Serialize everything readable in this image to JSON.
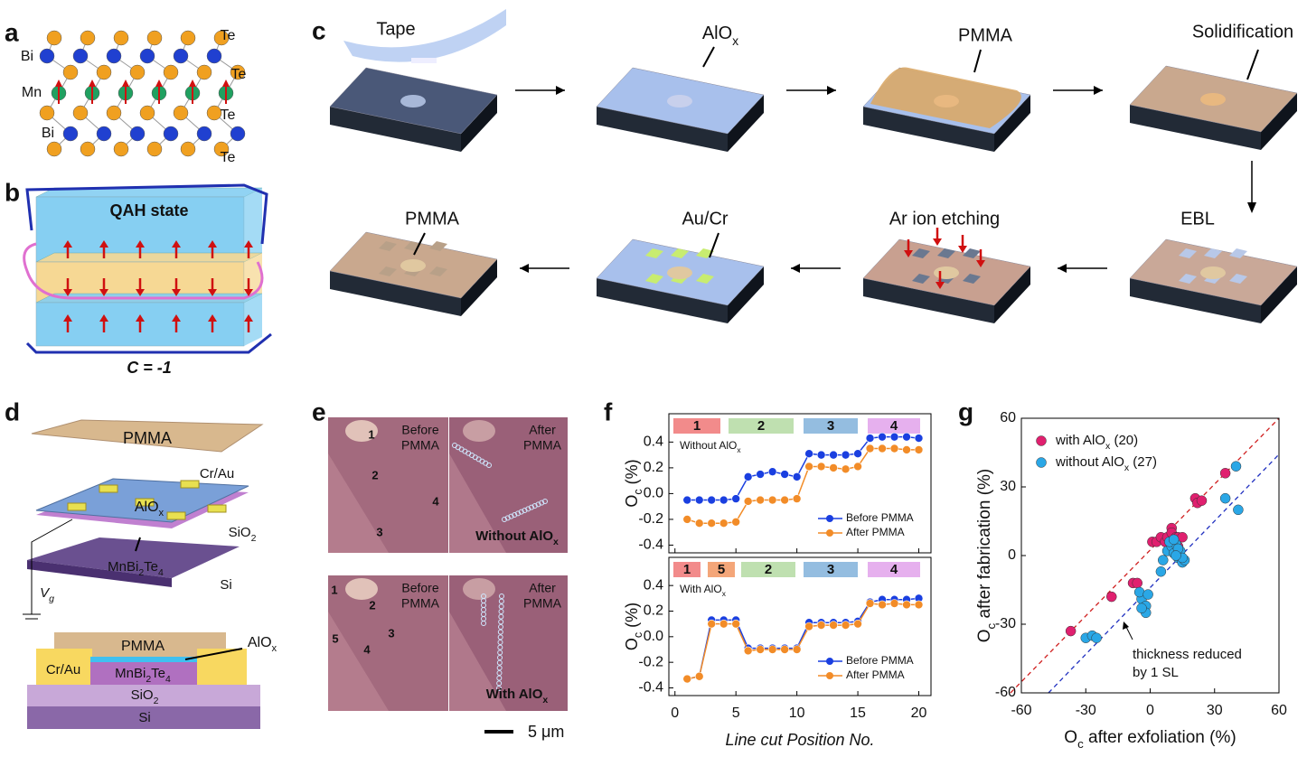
{
  "panel_letters": [
    "a",
    "b",
    "c",
    "d",
    "e",
    "f",
    "g"
  ],
  "panel_a": {
    "atoms": [
      "Bi",
      "Mn",
      "Bi",
      "Te",
      "Te",
      "Te",
      "Te"
    ]
  },
  "panel_b": {
    "state": "QAH state",
    "chern": "C = -1"
  },
  "panel_c": {
    "steps": [
      "Tape",
      [
        "AlO",
        "x"
      ],
      "PMMA",
      "Solidification",
      "EBL",
      "Ar ion etching",
      "Au/Cr",
      "PMMA"
    ]
  },
  "panel_d": {
    "pmma_plate": "PMMA",
    "cr_au": "Cr/Au",
    "alox": [
      "AlO",
      "x"
    ],
    "sio2": [
      "SiO",
      "2"
    ],
    "mbt": [
      "MnBi",
      "2",
      "Te",
      "4"
    ],
    "si": "Si",
    "vg": [
      "V",
      "g"
    ],
    "cross_section": {
      "pmma": "PMMA",
      "alox": [
        "AlO",
        "x"
      ],
      "cr_au": "Cr/Au",
      "mbt": [
        "MnBi",
        "2",
        "Te",
        "4"
      ],
      "sio2": [
        "SiO",
        "2"
      ],
      "si": "Si"
    }
  },
  "panel_e": {
    "top": {
      "before": {
        "lines": [
          "Before",
          "PMMA"
        ]
      },
      "after": {
        "lines": [
          "After",
          "PMMA"
        ]
      },
      "regions": [
        "1",
        "2",
        "3",
        "4"
      ],
      "sample": [
        "Without AlO",
        "x"
      ]
    },
    "bottom": {
      "before": {
        "lines": [
          "Before",
          "PMMA"
        ]
      },
      "after": {
        "lines": [
          "After",
          "PMMA"
        ]
      },
      "regions": [
        "1",
        "2",
        "3",
        "4",
        "5"
      ],
      "sample": [
        "With AlO",
        "x"
      ]
    },
    "scale_bar": "5 μm"
  },
  "chart_data": [
    {
      "type": "line",
      "annotation": [
        "Without AlO",
        "x"
      ],
      "y_label": [
        "O",
        "c",
        "  (%)"
      ],
      "segments": [
        {
          "label": "1",
          "color": "#f28b8b"
        },
        {
          "label": "2",
          "color": "#bfe0b0"
        },
        {
          "label": "3",
          "color": "#94bde0"
        },
        {
          "label": "4",
          "color": "#e6b0ee"
        }
      ],
      "x": [
        1,
        2,
        3,
        4,
        5,
        6,
        7,
        8,
        9,
        10,
        11,
        12,
        13,
        14,
        15,
        16,
        17,
        18,
        19,
        20
      ],
      "xlim": [
        -0.5,
        21
      ],
      "xticks": [
        0,
        5,
        10,
        15,
        20
      ],
      "ylim": [
        -0.46,
        0.62
      ],
      "yticks": [
        -0.4,
        -0.2,
        {
          "value": 0,
          "label": "0.0"
        },
        0.2,
        0.4
      ],
      "legend": "lower right",
      "series": [
        {
          "name": "Before PMMA",
          "color": "#1a3fe0",
          "values": [
            -0.05,
            -0.05,
            -0.05,
            -0.05,
            -0.04,
            0.13,
            0.15,
            0.17,
            0.15,
            0.13,
            0.31,
            0.3,
            0.3,
            0.3,
            0.31,
            0.43,
            0.44,
            0.44,
            0.44,
            0.43
          ]
        },
        {
          "name": "After PMMA",
          "color": "#f28c28",
          "values": [
            -0.2,
            -0.23,
            -0.23,
            -0.23,
            -0.22,
            -0.06,
            -0.05,
            -0.05,
            -0.05,
            -0.04,
            0.21,
            0.21,
            0.2,
            0.19,
            0.21,
            0.35,
            0.35,
            0.35,
            0.34,
            0.34
          ]
        }
      ]
    },
    {
      "type": "line",
      "annotation": [
        "With AlO",
        "x"
      ],
      "y_label": [
        "O",
        "c",
        "  (%)"
      ],
      "x_label": "Line cut Position No.",
      "segments": [
        {
          "label": "1",
          "color": "#f28b8b"
        },
        {
          "label": "5",
          "color": "#f4a679"
        },
        {
          "label": "2",
          "color": "#bfe0b0"
        },
        {
          "label": "3",
          "color": "#94bde0"
        },
        {
          "label": "4",
          "color": "#e6b0ee"
        }
      ],
      "x": [
        1,
        2,
        3,
        4,
        5,
        6,
        7,
        8,
        9,
        10,
        11,
        12,
        13,
        14,
        15,
        16,
        17,
        18,
        19,
        20
      ],
      "xlim": [
        -0.5,
        21
      ],
      "xticks": [
        0,
        5,
        10,
        15,
        20
      ],
      "ylim": [
        -0.46,
        0.62
      ],
      "yticks": [
        -0.4,
        -0.2,
        {
          "value": 0,
          "label": "0.0"
        },
        0.2,
        0.4
      ],
      "legend": "lower right",
      "series": [
        {
          "name": "Before PMMA",
          "color": "#1a3fe0",
          "values": [
            -0.33,
            -0.31,
            0.13,
            0.13,
            0.13,
            -0.09,
            -0.09,
            -0.09,
            -0.09,
            -0.09,
            0.11,
            0.11,
            0.11,
            0.11,
            0.12,
            0.27,
            0.29,
            0.29,
            0.29,
            0.3
          ]
        },
        {
          "name": "After PMMA",
          "color": "#f28c28",
          "values": [
            -0.33,
            -0.31,
            0.1,
            0.1,
            0.1,
            -0.11,
            -0.1,
            -0.1,
            -0.1,
            -0.1,
            0.08,
            0.09,
            0.09,
            0.09,
            0.1,
            0.26,
            0.25,
            0.26,
            0.25,
            0.25
          ]
        }
      ]
    },
    {
      "type": "scatter",
      "x_label": [
        "O",
        "c",
        " after exfoliation (%)"
      ],
      "y_label": [
        "O",
        "c",
        " after fabrication (%)"
      ],
      "xlim": [
        -60,
        60
      ],
      "ylim": [
        -60,
        60
      ],
      "xticks": [
        -60,
        -30,
        0,
        30,
        60
      ],
      "yticks": [
        -60,
        -30,
        0,
        30,
        60
      ],
      "legend": "upper left",
      "annotation": {
        "lines": [
          "thickness reduced",
          "by 1 SL"
        ]
      },
      "series": [
        {
          "name": [
            "with AlO",
            "x",
            " (20)"
          ],
          "color": "#e0206f",
          "x": [
            -37,
            -18,
            -8,
            -6,
            1,
            3,
            5,
            7,
            8,
            10,
            10,
            12,
            13,
            15,
            13,
            21,
            22,
            24,
            35,
            10
          ],
          "y": [
            -33,
            -18,
            -12,
            -12,
            6,
            6,
            8,
            6,
            8,
            12,
            10,
            8,
            8,
            8,
            4,
            25,
            23,
            24,
            36,
            6
          ]
        },
        {
          "name": [
            "without AlO",
            "x",
            " (27)"
          ],
          "color": "#2aa7e6",
          "x": [
            -30,
            -27,
            -25,
            -4,
            -2,
            -2,
            -4,
            -5,
            -1,
            5,
            6,
            8,
            10,
            11,
            12,
            13,
            14,
            15,
            16,
            13,
            9,
            11,
            15,
            35,
            40,
            41,
            12
          ],
          "y": [
            -36,
            -35,
            -36,
            -19,
            -22,
            -25,
            -23,
            -16,
            -17,
            -7,
            -2,
            2,
            4,
            1,
            5,
            -1,
            2,
            -3,
            -2,
            3,
            6,
            7,
            -1,
            25,
            39,
            20,
            0
          ]
        }
      ]
    }
  ]
}
